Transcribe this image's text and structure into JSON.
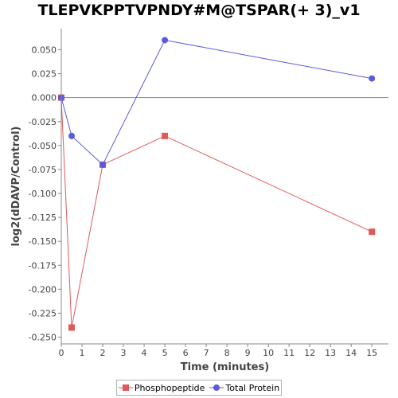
{
  "chart_data": {
    "type": "line",
    "title": "TLEPVKPPTVPNDY#M@TSPAR(+ 3)_v1",
    "xlabel": "Time (minutes)",
    "ylabel": "log2(dDAVP/Control)",
    "xlim": [
      0,
      15.8
    ],
    "ylim": [
      -0.257,
      0.072
    ],
    "x_ticks": [
      "0",
      "1",
      "2",
      "3",
      "4",
      "5",
      "6",
      "7",
      "8",
      "9",
      "10",
      "11",
      "12",
      "13",
      "14",
      "15"
    ],
    "y_ticks": [
      "0.050",
      "0.025",
      "0.000",
      "-0.025",
      "-0.050",
      "-0.075",
      "-0.100",
      "-0.125",
      "-0.150",
      "-0.175",
      "-0.200",
      "-0.225",
      "-0.250"
    ],
    "x": [
      0,
      0.5,
      2,
      5,
      15
    ],
    "series": [
      {
        "name": "Phosphopeptide",
        "color": "#e05a5a",
        "marker": "square",
        "values": [
          0.0,
          -0.24,
          -0.07,
          -0.04,
          -0.14
        ]
      },
      {
        "name": "Total Protein",
        "color": "#5a5ae0",
        "marker": "circle",
        "values": [
          0.0,
          -0.04,
          -0.07,
          0.06,
          0.02
        ]
      }
    ],
    "grid": false,
    "legend_position": "bottom"
  }
}
